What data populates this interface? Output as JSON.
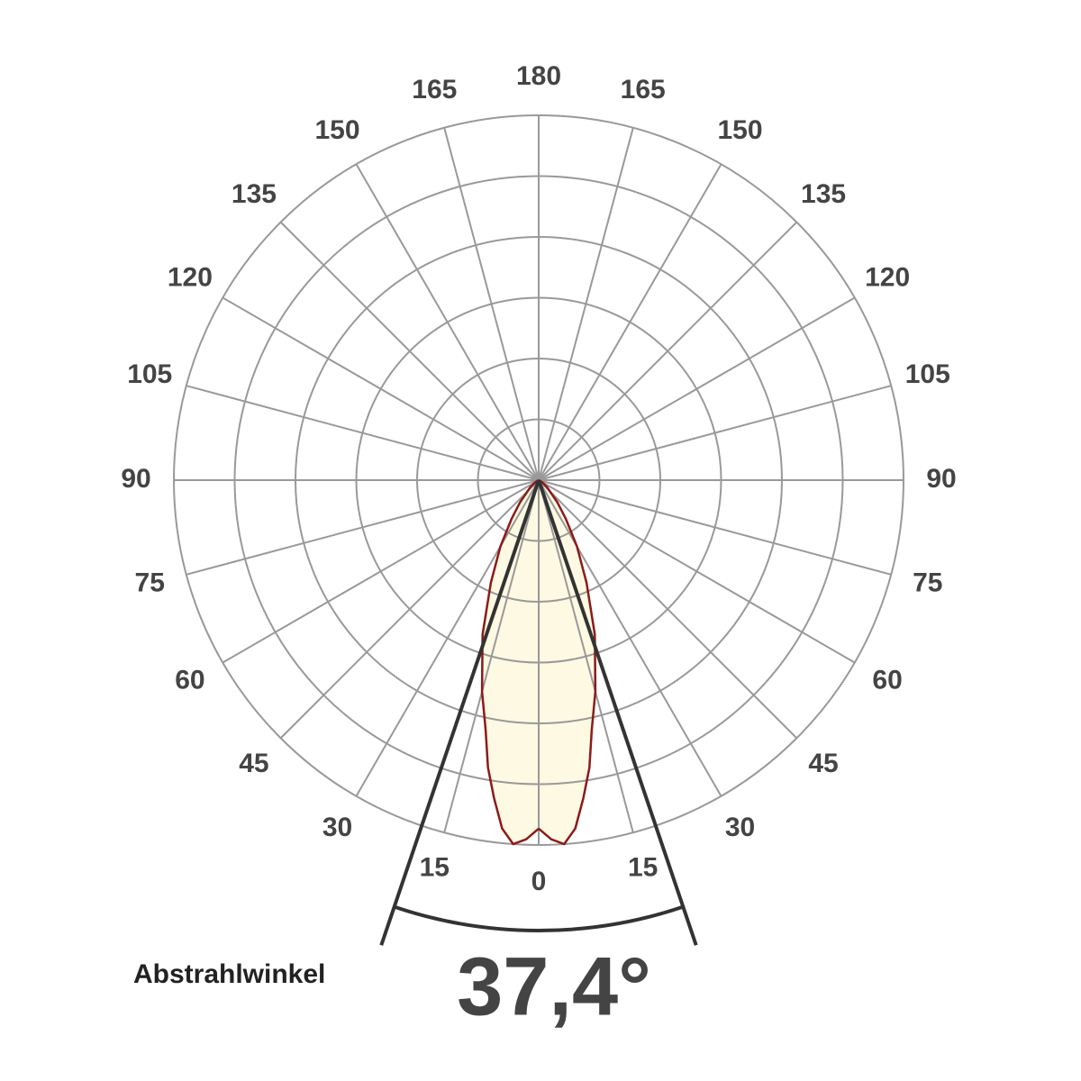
{
  "chart_data": {
    "type": "polar",
    "angle_ticks": [
      0,
      15,
      30,
      45,
      60,
      75,
      90,
      105,
      120,
      135,
      150,
      165,
      180
    ],
    "angles": [
      0,
      2,
      4,
      6,
      8,
      10,
      12,
      15,
      20,
      25,
      30,
      35,
      40,
      50,
      60,
      90
    ],
    "values": [
      0.955,
      0.985,
      1.0,
      0.96,
      0.88,
      0.8,
      0.7,
      0.6,
      0.45,
      0.31,
      0.21,
      0.13,
      0.08,
      0.03,
      0.01,
      0
    ],
    "line_color": "#8b1a1a",
    "fill_color": "#fdf9e3",
    "beam_angle": {
      "value": 37.4,
      "label": "37,4°"
    },
    "beam_text": "Abstrahlwinkel"
  }
}
